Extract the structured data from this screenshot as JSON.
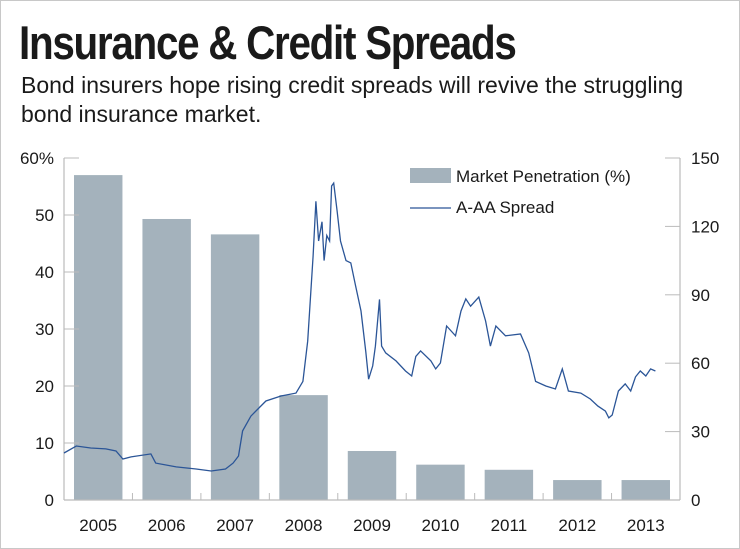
{
  "title": "Insurance & Credit Spreads",
  "subtitle": "Bond insurers hope rising credit spreads will revive the struggling bond insurance market.",
  "chart_data": {
    "type": "bar+line",
    "categories": [
      "2005",
      "2006",
      "2007",
      "2008",
      "2009",
      "2010",
      "2011",
      "2012",
      "2013"
    ],
    "left_axis": {
      "ticks": [
        "0",
        "10",
        "20",
        "30",
        "40",
        "50",
        "60%"
      ],
      "range": [
        0,
        60
      ]
    },
    "right_axis": {
      "ticks": [
        "0",
        "30",
        "60",
        "90",
        "120",
        "150"
      ],
      "range": [
        0,
        150
      ]
    },
    "grid": false,
    "legend_position": "top-right",
    "colors": {
      "bar": "#a4b2bc",
      "line": "#2b5597"
    },
    "series": [
      {
        "name": "Market Penetration (%)",
        "type": "bar",
        "axis": "left",
        "values": [
          57,
          49.3,
          46.6,
          18.4,
          8.6,
          6.2,
          5.3,
          3.5,
          3.5
        ]
      },
      {
        "name": "A-AA Spread",
        "type": "line",
        "axis": "right",
        "points": [
          [
            2005.0,
            20.6
          ],
          [
            2005.18,
            23.7
          ],
          [
            2005.39,
            22.8
          ],
          [
            2005.61,
            22.4
          ],
          [
            2005.76,
            21.5
          ],
          [
            2005.86,
            18
          ],
          [
            2005.98,
            18.9
          ],
          [
            2006.27,
            20.2
          ],
          [
            2006.34,
            16.2
          ],
          [
            2006.64,
            14.5
          ],
          [
            2006.93,
            13.6
          ],
          [
            2007.15,
            12.7
          ],
          [
            2007.36,
            13.6
          ],
          [
            2007.47,
            16.2
          ],
          [
            2007.55,
            19.3
          ],
          [
            2007.61,
            30.3
          ],
          [
            2007.73,
            36.8
          ],
          [
            2007.95,
            43.4
          ],
          [
            2008.17,
            45.6
          ],
          [
            2008.39,
            46.9
          ],
          [
            2008.49,
            52
          ],
          [
            2008.56,
            69.7
          ],
          [
            2008.64,
            107
          ],
          [
            2008.68,
            131
          ],
          [
            2008.72,
            113.6
          ],
          [
            2008.77,
            122
          ],
          [
            2008.8,
            105
          ],
          [
            2008.84,
            116
          ],
          [
            2008.88,
            113.6
          ],
          [
            2008.91,
            137.7
          ],
          [
            2008.94,
            139
          ],
          [
            2008.99,
            126.8
          ],
          [
            2009.04,
            113.6
          ],
          [
            2009.12,
            105
          ],
          [
            2009.19,
            104
          ],
          [
            2009.26,
            93.9
          ],
          [
            2009.34,
            82.9
          ],
          [
            2009.41,
            65
          ],
          [
            2009.45,
            53
          ],
          [
            2009.51,
            58.8
          ],
          [
            2009.55,
            67.5
          ],
          [
            2009.61,
            88
          ],
          [
            2009.64,
            67.5
          ],
          [
            2009.7,
            64.5
          ],
          [
            2009.85,
            61
          ],
          [
            2009.99,
            56.6
          ],
          [
            2010.08,
            54.4
          ],
          [
            2010.14,
            63
          ],
          [
            2010.21,
            65.4
          ],
          [
            2010.36,
            61
          ],
          [
            2010.43,
            57.5
          ],
          [
            2010.5,
            60.1
          ],
          [
            2010.59,
            76.3
          ],
          [
            2010.72,
            72
          ],
          [
            2010.8,
            82.9
          ],
          [
            2010.87,
            88.2
          ],
          [
            2010.94,
            85
          ],
          [
            2011.06,
            89
          ],
          [
            2011.16,
            78.5
          ],
          [
            2011.23,
            67.5
          ],
          [
            2011.31,
            76.3
          ],
          [
            2011.45,
            72
          ],
          [
            2011.67,
            72.8
          ],
          [
            2011.79,
            64.5
          ],
          [
            2011.89,
            52
          ],
          [
            2012.04,
            50
          ],
          [
            2012.18,
            48.7
          ],
          [
            2012.28,
            57.5
          ],
          [
            2012.37,
            47.8
          ],
          [
            2012.55,
            46.9
          ],
          [
            2012.69,
            44.3
          ],
          [
            2012.8,
            41.2
          ],
          [
            2012.91,
            39
          ],
          [
            2012.96,
            36
          ],
          [
            2013.01,
            37.3
          ],
          [
            2013.1,
            47.8
          ],
          [
            2013.2,
            50.9
          ],
          [
            2013.28,
            47.8
          ],
          [
            2013.35,
            54
          ],
          [
            2013.42,
            56.6
          ],
          [
            2013.5,
            54.4
          ],
          [
            2013.57,
            57.5
          ],
          [
            2013.64,
            56.6
          ]
        ]
      }
    ]
  }
}
